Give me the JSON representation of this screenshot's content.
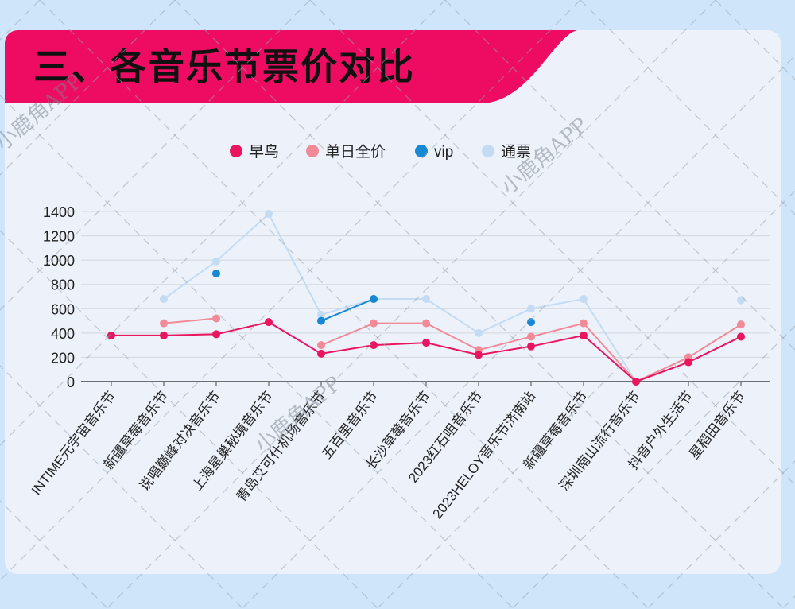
{
  "page": {
    "title": "三、各音乐节票价对比"
  },
  "watermark": {
    "text": "小鹿角APP"
  },
  "colors": {
    "banner": "#ee0c63",
    "early": "#ea145f",
    "single": "#f28a98",
    "vip": "#1789d4",
    "pass": "#c3dcf3"
  },
  "chart_data": {
    "type": "line",
    "categories": [
      "INTIME元宇宙音乐节",
      "新疆草莓音乐节",
      "说唱巅峰对决音乐节",
      "上海星巢秘境音乐节",
      "青岛艾可什机场音乐节",
      "五百里音乐节",
      "长沙草莓音乐节",
      "2023红石咀音乐节",
      "2023HELOY音乐节济南站",
      "新疆草莓音乐节",
      "深圳南山流行音乐节",
      "抖音户外生活节",
      "星稻田音乐节"
    ],
    "series": [
      {
        "name": "早鸟",
        "color": "#ea145f",
        "values": [
          380,
          380,
          390,
          490,
          230,
          300,
          320,
          220,
          290,
          380,
          0,
          160,
          370
        ]
      },
      {
        "name": "单日全价",
        "color": "#f28a98",
        "values": [
          null,
          480,
          520,
          null,
          300,
          480,
          480,
          260,
          370,
          480,
          0,
          200,
          470
        ]
      },
      {
        "name": "vip",
        "color": "#1789d4",
        "values": [
          null,
          null,
          890,
          null,
          500,
          680,
          null,
          null,
          490,
          null,
          null,
          null,
          null
        ]
      },
      {
        "name": "通票",
        "color": "#c3dcf3",
        "values": [
          null,
          680,
          990,
          1380,
          550,
          680,
          680,
          400,
          600,
          680,
          0,
          null,
          670
        ]
      }
    ],
    "yticks": [
      0,
      200,
      400,
      600,
      800,
      1000,
      1200,
      1400
    ],
    "ylim": [
      0,
      1400
    ],
    "grid": true,
    "legend_position": "top-center"
  }
}
